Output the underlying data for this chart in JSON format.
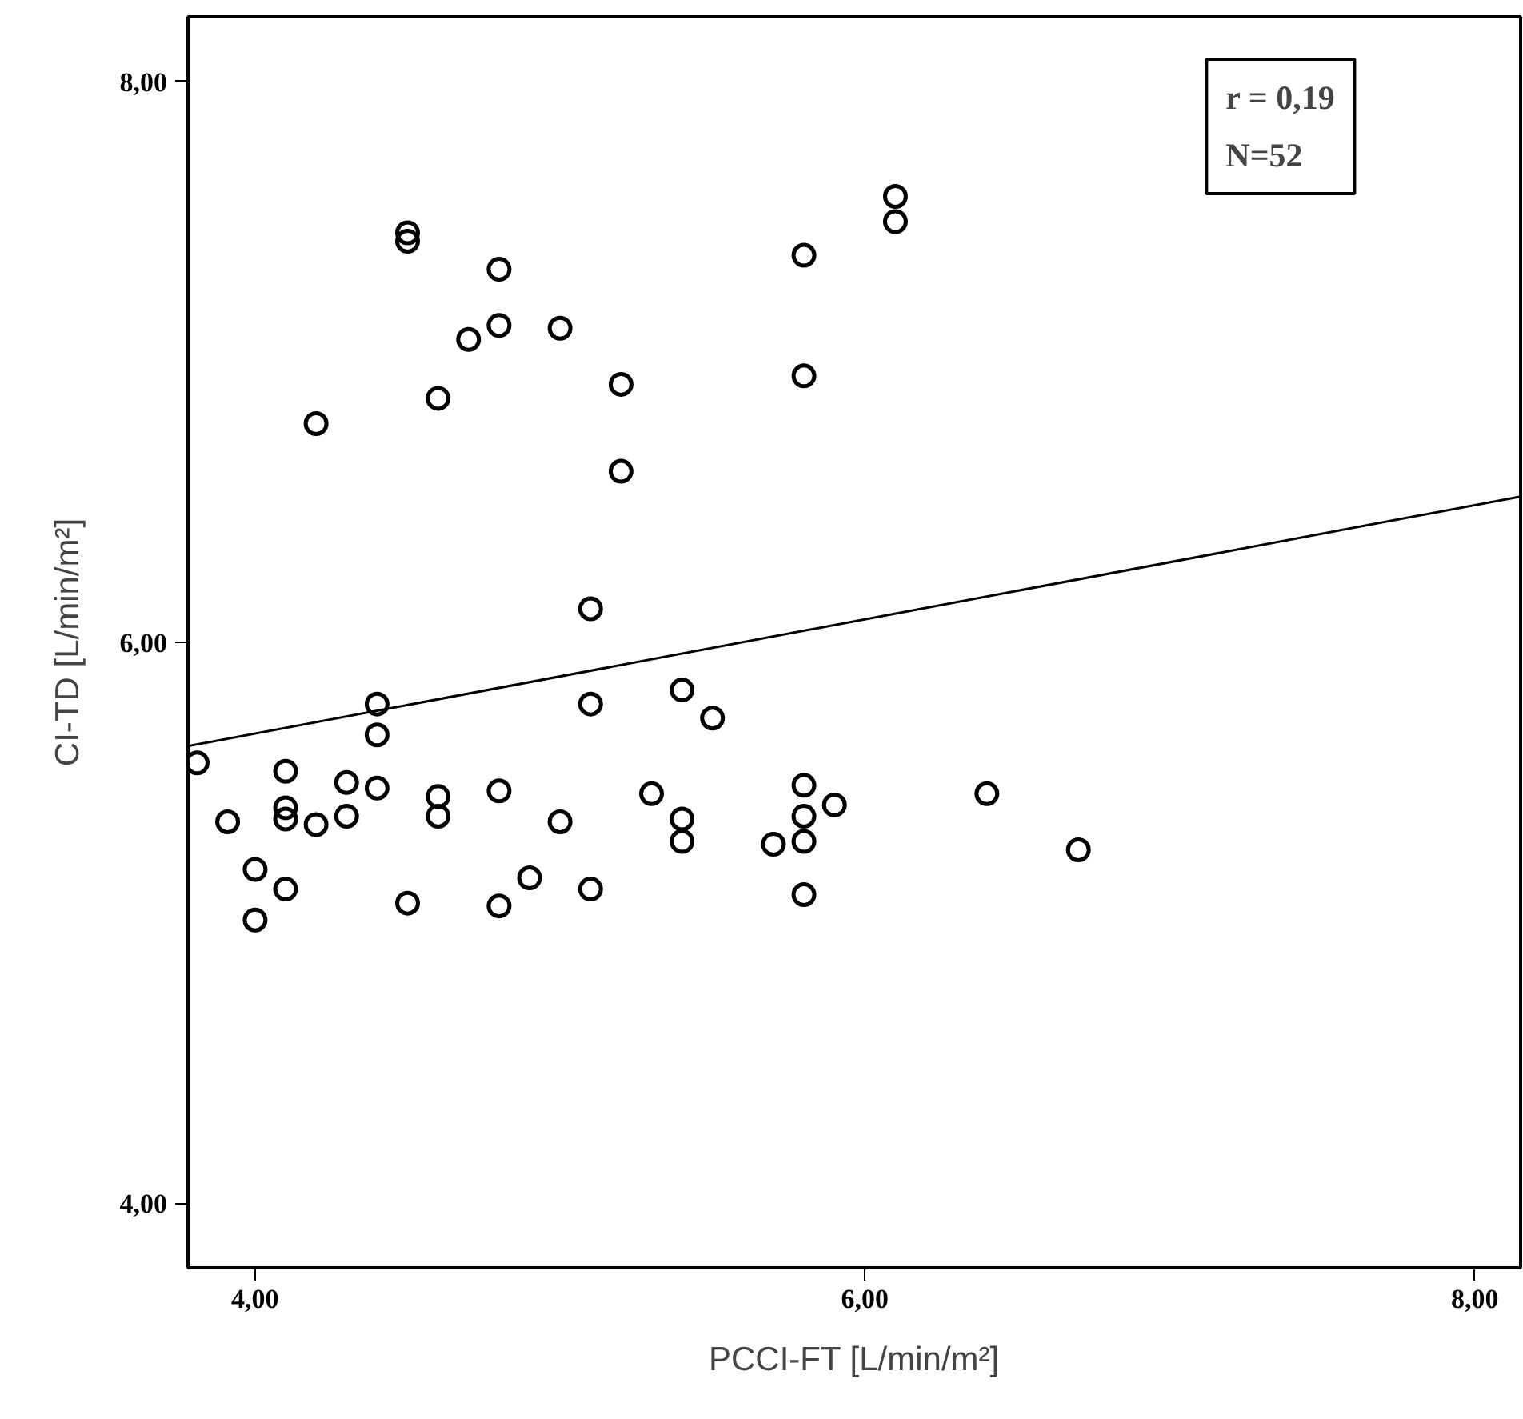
{
  "chart_data": {
    "type": "scatter",
    "xlabel": "PCCI-FT [L/min/m²]",
    "ylabel": "CI-TD [L/min/m²]",
    "xlim": [
      3.78,
      8.15
    ],
    "ylim": [
      3.77,
      8.23
    ],
    "xticks": [
      {
        "value": 4,
        "label": "4,00"
      },
      {
        "value": 6,
        "label": "6,00"
      },
      {
        "value": 8,
        "label": "8,00"
      }
    ],
    "yticks": [
      {
        "value": 4,
        "label": "4,00"
      },
      {
        "value": 6,
        "label": "6,00"
      },
      {
        "value": 8,
        "label": "8,00"
      }
    ],
    "grid": false,
    "annotations": [
      "r = 0,19\nN=52"
    ],
    "series": [
      {
        "marker": "circle",
        "color": "#000000",
        "x": [
          3.81,
          3.91,
          4.0,
          4.0,
          4.1,
          4.1,
          4.1,
          4.1,
          4.2,
          4.2,
          4.3,
          4.3,
          4.4,
          4.4,
          4.4,
          4.5,
          4.5,
          4.5,
          4.6,
          4.6,
          4.6,
          4.7,
          4.8,
          4.8,
          4.8,
          4.8,
          4.9,
          5.0,
          5.0,
          5.1,
          5.1,
          5.1,
          5.2,
          5.2,
          5.3,
          5.4,
          5.4,
          5.4,
          5.5,
          5.7,
          5.8,
          5.8,
          5.8,
          5.8,
          5.8,
          5.8,
          5.9,
          6.1,
          6.1,
          6.4,
          6.7
        ],
        "values": [
          5.57,
          5.36,
          5.19,
          5.01,
          5.54,
          5.41,
          5.37,
          5.12,
          6.78,
          5.35,
          5.5,
          5.38,
          5.78,
          5.67,
          5.48,
          7.46,
          7.43,
          5.07,
          6.87,
          5.45,
          5.38,
          7.08,
          7.33,
          7.13,
          5.47,
          5.06,
          5.16,
          7.12,
          5.36,
          6.12,
          5.78,
          5.12,
          6.92,
          6.61,
          5.46,
          5.83,
          5.37,
          5.29,
          5.73,
          5.28,
          7.38,
          6.95,
          5.49,
          5.38,
          5.29,
          5.1,
          5.42,
          7.59,
          7.5,
          5.46,
          5.26
        ]
      },
      {
        "type": "line",
        "color": "#000000",
        "x": [
          3.78,
          8.15
        ],
        "values": [
          5.63,
          6.52
        ]
      }
    ]
  }
}
